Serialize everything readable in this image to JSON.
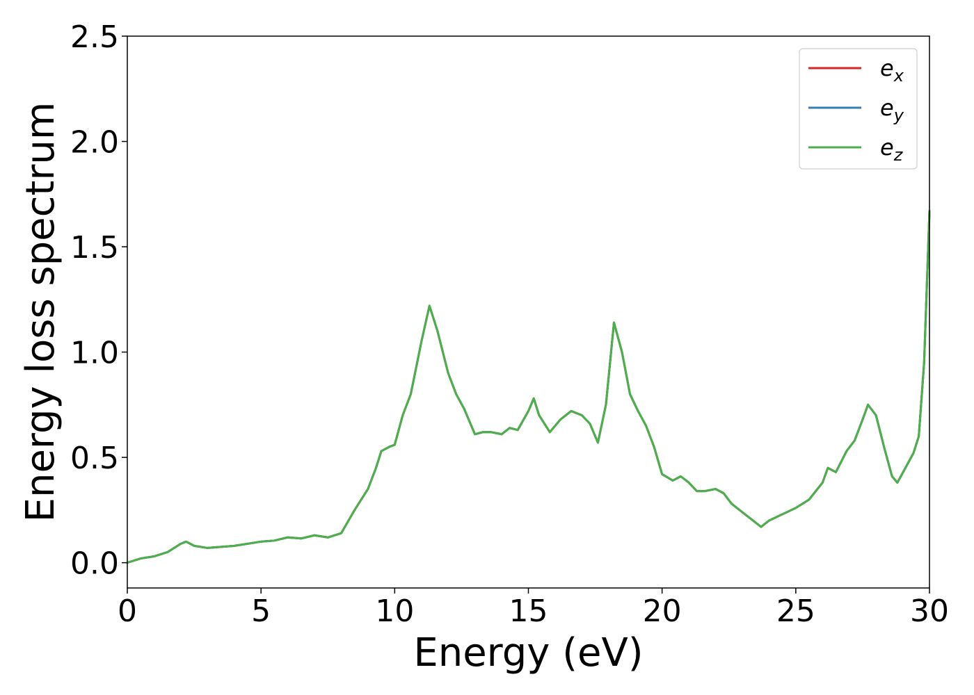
{
  "chart_data": {
    "type": "line",
    "title": "",
    "xlabel": "Energy (eV)",
    "ylabel": "Energy loss spectrum",
    "xlim": [
      0,
      30
    ],
    "ylim": [
      -0.12,
      2.5
    ],
    "xticks": [
      0,
      5,
      10,
      15,
      20,
      25,
      30
    ],
    "xtick_labels": [
      "0",
      "5",
      "10",
      "15",
      "20",
      "25",
      "30"
    ],
    "yticks": [
      0,
      0.5,
      1.0,
      1.5,
      2.0,
      2.5
    ],
    "ytick_labels": [
      "0.0",
      "0.5",
      "1.0",
      "1.5",
      "2.0",
      "2.5"
    ],
    "grid": false,
    "legend": {
      "position": "top-right",
      "base": "e",
      "subscripts": [
        "x",
        "y",
        "z"
      ]
    },
    "x": [
      0,
      0.5,
      1.0,
      1.5,
      2.0,
      2.2,
      2.5,
      3.0,
      3.5,
      4.0,
      4.5,
      5.0,
      5.5,
      6.0,
      6.5,
      7.0,
      7.5,
      8.0,
      8.5,
      9.0,
      9.3,
      9.5,
      9.8,
      10.0,
      10.3,
      10.6,
      11.0,
      11.3,
      11.6,
      12.0,
      12.3,
      12.6,
      13.0,
      13.3,
      13.6,
      14.0,
      14.3,
      14.6,
      15.0,
      15.2,
      15.4,
      15.8,
      16.2,
      16.6,
      17.0,
      17.3,
      17.6,
      17.9,
      18.2,
      18.5,
      18.8,
      19.1,
      19.4,
      19.7,
      20.0,
      20.4,
      20.7,
      21.0,
      21.3,
      21.6,
      22.0,
      22.3,
      22.6,
      23.0,
      23.3,
      23.7,
      24.0,
      24.5,
      25.0,
      25.5,
      26.0,
      26.2,
      26.5,
      26.9,
      27.2,
      27.5,
      27.7,
      28.0,
      28.3,
      28.6,
      28.8,
      29.1,
      29.4,
      29.6,
      29.8,
      30.0
    ],
    "series": [
      {
        "name": "e_x",
        "color": "#d62728",
        "y": [
          0.0,
          0.02,
          0.03,
          0.05,
          0.09,
          0.1,
          0.08,
          0.07,
          0.075,
          0.08,
          0.09,
          0.1,
          0.105,
          0.12,
          0.115,
          0.13,
          0.12,
          0.14,
          0.25,
          0.35,
          0.45,
          0.53,
          0.55,
          0.56,
          0.7,
          0.8,
          1.05,
          1.22,
          1.1,
          0.9,
          0.8,
          0.73,
          0.61,
          0.62,
          0.62,
          0.61,
          0.64,
          0.63,
          0.72,
          0.78,
          0.7,
          0.62,
          0.68,
          0.72,
          0.7,
          0.66,
          0.57,
          0.75,
          1.14,
          1.0,
          0.8,
          0.72,
          0.65,
          0.55,
          0.42,
          0.39,
          0.41,
          0.38,
          0.34,
          0.34,
          0.35,
          0.33,
          0.28,
          0.24,
          0.21,
          0.17,
          0.2,
          0.23,
          0.26,
          0.3,
          0.38,
          0.45,
          0.43,
          0.53,
          0.58,
          0.68,
          0.75,
          0.7,
          0.55,
          0.41,
          0.38,
          0.45,
          0.52,
          0.6,
          0.95,
          1.67
        ]
      },
      {
        "name": "e_y",
        "color": "#377eb8",
        "y": [
          0.0,
          0.02,
          0.03,
          0.05,
          0.09,
          0.1,
          0.08,
          0.07,
          0.075,
          0.08,
          0.09,
          0.1,
          0.105,
          0.12,
          0.115,
          0.13,
          0.12,
          0.14,
          0.25,
          0.35,
          0.45,
          0.53,
          0.55,
          0.56,
          0.7,
          0.8,
          1.05,
          1.22,
          1.1,
          0.9,
          0.8,
          0.73,
          0.61,
          0.62,
          0.62,
          0.61,
          0.64,
          0.63,
          0.72,
          0.78,
          0.7,
          0.62,
          0.68,
          0.72,
          0.7,
          0.66,
          0.57,
          0.75,
          1.14,
          1.0,
          0.8,
          0.72,
          0.65,
          0.55,
          0.42,
          0.39,
          0.41,
          0.38,
          0.34,
          0.34,
          0.35,
          0.33,
          0.28,
          0.24,
          0.21,
          0.17,
          0.2,
          0.23,
          0.26,
          0.3,
          0.38,
          0.45,
          0.43,
          0.53,
          0.58,
          0.68,
          0.75,
          0.7,
          0.55,
          0.41,
          0.38,
          0.45,
          0.52,
          0.6,
          0.95,
          1.67
        ]
      },
      {
        "name": "e_z",
        "color": "#4daf4a",
        "y": [
          0.0,
          0.02,
          0.03,
          0.05,
          0.09,
          0.1,
          0.08,
          0.07,
          0.075,
          0.08,
          0.09,
          0.1,
          0.105,
          0.12,
          0.115,
          0.13,
          0.12,
          0.14,
          0.25,
          0.35,
          0.45,
          0.53,
          0.55,
          0.56,
          0.7,
          0.8,
          1.05,
          1.22,
          1.1,
          0.9,
          0.8,
          0.73,
          0.61,
          0.62,
          0.62,
          0.61,
          0.64,
          0.63,
          0.72,
          0.78,
          0.7,
          0.62,
          0.68,
          0.72,
          0.7,
          0.66,
          0.57,
          0.75,
          1.14,
          1.0,
          0.8,
          0.72,
          0.65,
          0.55,
          0.42,
          0.39,
          0.41,
          0.38,
          0.34,
          0.34,
          0.35,
          0.33,
          0.28,
          0.24,
          0.21,
          0.17,
          0.2,
          0.23,
          0.26,
          0.3,
          0.38,
          0.45,
          0.43,
          0.53,
          0.58,
          0.68,
          0.75,
          0.7,
          0.55,
          0.41,
          0.38,
          0.45,
          0.52,
          0.6,
          0.95,
          1.67
        ]
      }
    ]
  }
}
